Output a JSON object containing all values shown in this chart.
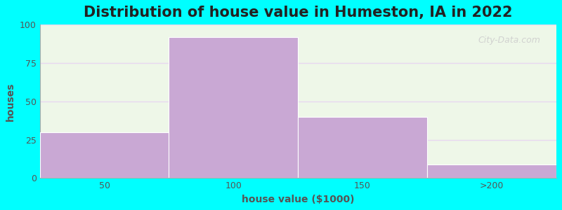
{
  "title": "Distribution of house value in Humeston, IA in 2022",
  "xlabel": "house value ($1000)",
  "ylabel": "houses",
  "bar_labels": [
    "50",
    "100",
    "150",
    ">200"
  ],
  "bar_values": [
    30,
    92,
    40,
    9
  ],
  "bar_color": "#C9A8D4",
  "ylim": [
    0,
    100
  ],
  "yticks": [
    0,
    25,
    50,
    75,
    100
  ],
  "background_color": "#00FFFF",
  "plot_bg_color": "#eef7e8",
  "grid_color": "#e8d8f0",
  "title_fontsize": 15,
  "label_fontsize": 10,
  "tick_fontsize": 9,
  "watermark_text": "City-Data.com",
  "watermark_color": "#cccccc",
  "figure_size": [
    8.0,
    3.0
  ],
  "dpi": 100
}
